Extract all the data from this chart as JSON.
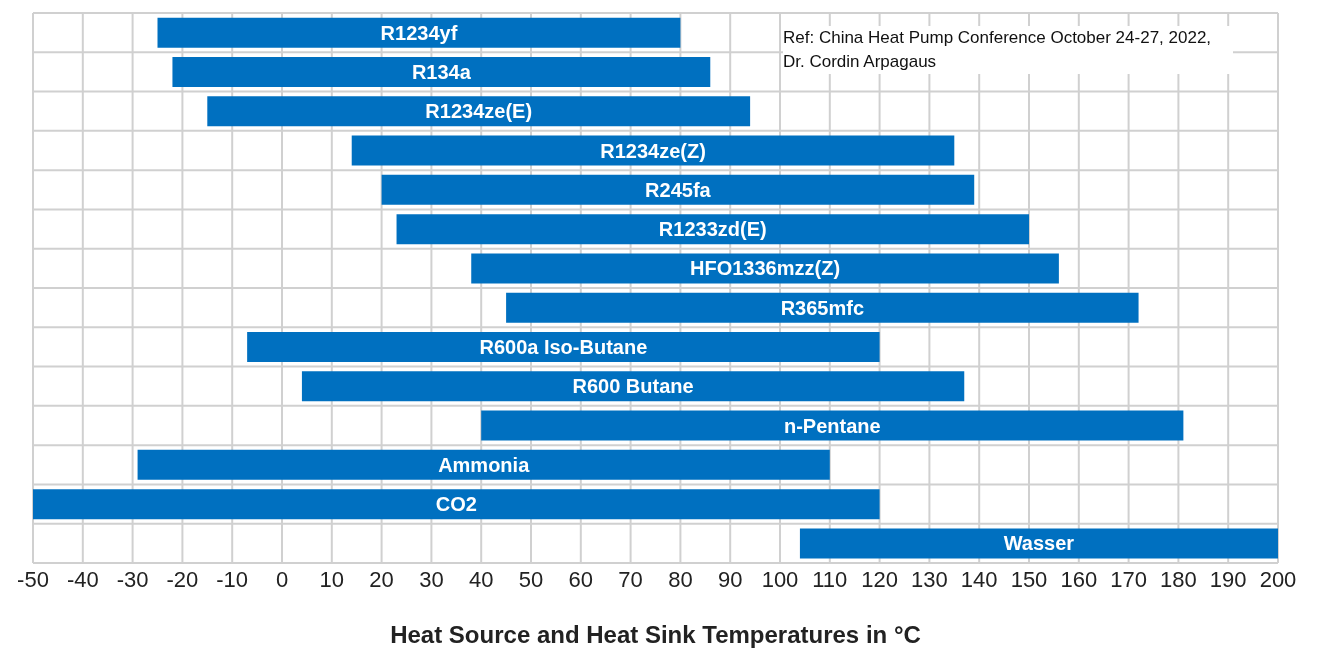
{
  "chart_data": {
    "type": "bar",
    "orientation": "horizontal",
    "xlabel": "Heat Source and Heat Sink Temperatures in °C",
    "categories": [
      "R1234yf",
      "R134a",
      "R1234ze(E)",
      "R1234ze(Z)",
      "R245fa",
      "R1233zd(E)",
      "HFO1336mzz(Z)",
      "R365mfc",
      "R600a Iso-Butane",
      "R600 Butane",
      "n-Pentane",
      "Ammonia",
      "CO2",
      "Wasser"
    ],
    "base": [
      -25,
      -22,
      -15,
      14,
      20,
      23,
      38,
      45,
      -7,
      4,
      40,
      -29,
      -50,
      104
    ],
    "values": [
      105,
      108,
      109,
      121,
      119,
      127,
      118,
      127,
      127,
      133,
      141,
      139,
      170,
      96
    ],
    "color": "#0070c0",
    "xlim": [
      -50,
      200
    ],
    "xticks": [
      -50,
      -40,
      -30,
      -20,
      -10,
      0,
      10,
      20,
      30,
      40,
      50,
      60,
      70,
      80,
      90,
      100,
      110,
      120,
      130,
      140,
      150,
      160,
      170,
      180,
      190,
      200
    ],
    "grid": true,
    "tick_labels": "x",
    "annotations": [
      "Ref: China Heat Pump Conference October 24-27, 2022, Dr. Cordin Arpagaus"
    ]
  }
}
